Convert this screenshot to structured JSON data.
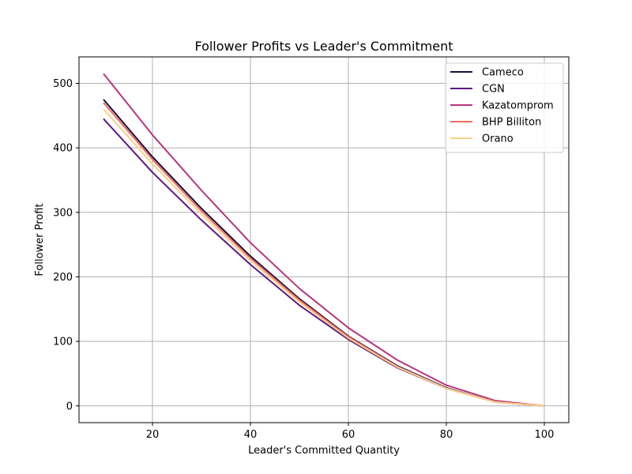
{
  "chart_data": {
    "type": "line",
    "title": "Follower Profits vs Leader's Commitment",
    "xlabel": "Leader's Committed Quantity",
    "ylabel": "Follower Profit",
    "xlim": [
      5,
      105
    ],
    "ylim": [
      -26,
      541
    ],
    "xticks": [
      20,
      40,
      60,
      80,
      100
    ],
    "yticks": [
      0,
      100,
      200,
      300,
      400,
      500
    ],
    "grid": true,
    "legend_position": "top-right",
    "x": [
      10,
      20,
      30,
      40,
      50,
      60,
      70,
      80,
      90,
      100
    ],
    "series": [
      {
        "name": "Cameco",
        "color": "#1b0c41",
        "values": [
          475,
          386,
          306,
          232,
          166,
          108,
          62,
          28,
          6,
          0
        ]
      },
      {
        "name": "CGN",
        "color": "#5c1a84",
        "values": [
          445,
          362,
          288,
          219,
          156,
          103,
          59,
          27,
          6,
          0
        ]
      },
      {
        "name": "Kazatomprom",
        "color": "#b5367a",
        "values": [
          515,
          420,
          334,
          253,
          182,
          121,
          71,
          32,
          8,
          0
        ]
      },
      {
        "name": "BHP Billiton",
        "color": "#f06c5a",
        "values": [
          470,
          382,
          302,
          229,
          164,
          107,
          61,
          27,
          6,
          0
        ]
      },
      {
        "name": "Orano",
        "color": "#fbd08b",
        "values": [
          460,
          375,
          297,
          225,
          161,
          105,
          60,
          27,
          6,
          0
        ]
      }
    ]
  }
}
